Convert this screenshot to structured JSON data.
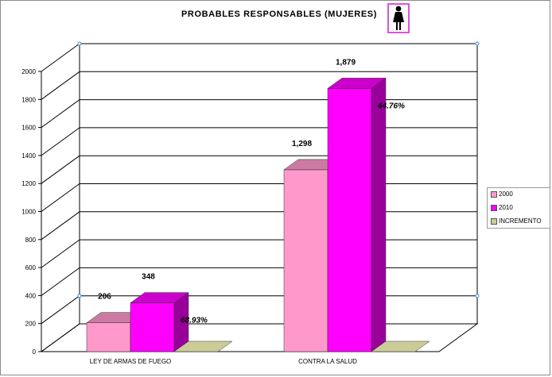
{
  "chart_data": {
    "type": "bar",
    "title": "PROBABLES  RESPONSABLES  (MUJERES)",
    "categories": [
      "LEY DE ARMAS DE FUEGO",
      "CONTRA LA SALUD"
    ],
    "series": [
      {
        "name": "2000",
        "values": [
          206,
          1298
        ],
        "labels": [
          "206",
          "1,298"
        ],
        "color": "#ff99cc"
      },
      {
        "name": "2010",
        "values": [
          348,
          1879
        ],
        "labels": [
          "348",
          "1,879"
        ],
        "color": "#ff00ff"
      },
      {
        "name": "INCREMENTO",
        "values": [
          0,
          0
        ],
        "labels": [
          "68.93%",
          "44.76%"
        ],
        "color": "#cccc99"
      }
    ],
    "ylim": [
      0,
      2000
    ],
    "yticks": [
      0,
      200,
      400,
      600,
      800,
      1000,
      1200,
      1400,
      1600,
      1800,
      2000
    ],
    "yticklabels": [
      "0",
      "200",
      "400",
      "600",
      "800",
      "1000",
      "1200",
      "1400",
      "1600",
      "1800",
      "2000"
    ],
    "legend_position": "right",
    "grid": true,
    "icon": "woman-icon"
  }
}
